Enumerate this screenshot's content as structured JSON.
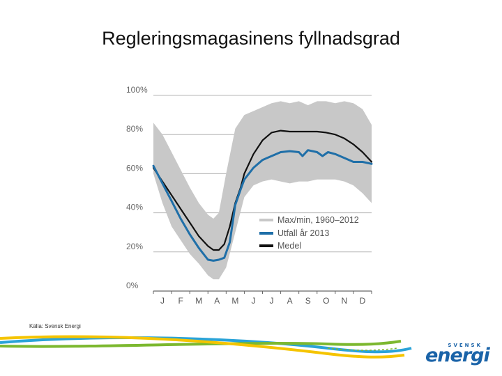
{
  "slide": {
    "title": "Regleringsmagasinens fyllnadsgrad",
    "source": "Källa: Svensk Energi"
  },
  "logo": {
    "top": "SVENSK",
    "main": "energi",
    "color": "#1a63a8"
  },
  "chart_data": {
    "type": "line",
    "title": "",
    "xlabel": "",
    "ylabel": "",
    "months": [
      "J",
      "F",
      "M",
      "A",
      "M",
      "J",
      "J",
      "A",
      "S",
      "O",
      "N",
      "D"
    ],
    "yticks": [
      0,
      20,
      40,
      60,
      80,
      100
    ],
    "ytick_labels": [
      "0%",
      "20%",
      "40%",
      "60%",
      "80%",
      "100%"
    ],
    "ylim": [
      0,
      100
    ],
    "xlim": [
      0,
      12
    ],
    "grid": true,
    "legend_position": "center-right",
    "band": {
      "name": "Max/min, 1960–2012",
      "color": "#c8c8c8",
      "x": [
        0,
        0.5,
        1,
        1.5,
        2,
        2.5,
        3,
        3.3,
        3.6,
        4,
        4.5,
        5,
        5.5,
        6,
        6.5,
        7,
        7.5,
        8,
        8.5,
        9,
        9.5,
        10,
        10.5,
        11,
        11.5,
        12
      ],
      "max": [
        86,
        80,
        71,
        62,
        53,
        45,
        39,
        37,
        40,
        60,
        83,
        90,
        92,
        94,
        96,
        97,
        96,
        97,
        95,
        97,
        97,
        96,
        97,
        96,
        93,
        85
      ],
      "min": [
        60,
        45,
        33,
        26,
        19,
        14,
        8,
        6,
        6,
        12,
        30,
        48,
        54,
        56,
        57,
        56,
        55,
        56,
        56,
        57,
        57,
        57,
        56,
        54,
        50,
        45
      ]
    },
    "series": [
      {
        "name": "Utfall år 2013",
        "color": "#1f6fa8",
        "x": [
          0,
          0.5,
          1,
          1.5,
          2,
          2.5,
          3,
          3.3,
          3.6,
          3.9,
          4.2,
          4.5,
          4.8,
          5,
          5.5,
          6,
          6.5,
          7,
          7.5,
          8,
          8.2,
          8.5,
          9,
          9.3,
          9.6,
          10,
          10.5,
          11,
          11.5,
          12
        ],
        "values": [
          64,
          55,
          46,
          37,
          29,
          22,
          16,
          15.5,
          16,
          17,
          25,
          44,
          52,
          57,
          63,
          67,
          69,
          71,
          71.5,
          71,
          69,
          72,
          71,
          69,
          71,
          70,
          68,
          66,
          66,
          65
        ]
      },
      {
        "name": "Medel",
        "color": "#111111",
        "x": [
          0,
          0.5,
          1,
          1.5,
          2,
          2.5,
          3,
          3.3,
          3.6,
          3.9,
          4.2,
          4.5,
          4.8,
          5,
          5.5,
          6,
          6.5,
          7,
          7.5,
          8,
          8.5,
          9,
          9.5,
          10,
          10.5,
          11,
          11.5,
          12
        ],
        "values": [
          63,
          56,
          49,
          42,
          35,
          28,
          23,
          21,
          21,
          24,
          33,
          45,
          53,
          60,
          70,
          77,
          81,
          82,
          81.5,
          81.5,
          81.5,
          81.5,
          81,
          80,
          78,
          75,
          71,
          66
        ]
      }
    ]
  }
}
